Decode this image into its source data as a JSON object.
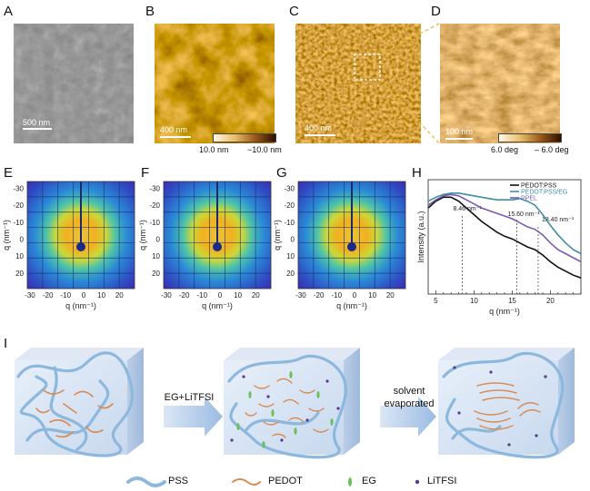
{
  "panels": {
    "A": {
      "label": "A",
      "scalebar": "500 nm"
    },
    "B": {
      "label": "B",
      "scalebar": "400 nm",
      "cb_max": "10.0 nm",
      "cb_min": "−10.0 nm"
    },
    "C": {
      "label": "C",
      "scalebar": "400 nm"
    },
    "D": {
      "label": "D",
      "scalebar": "100 nm",
      "cb_max": "6.0 deg",
      "cb_min": "– 6.0 deg"
    },
    "E": {
      "label": "E"
    },
    "F": {
      "label": "F"
    },
    "G": {
      "label": "G"
    },
    "H": {
      "label": "H"
    },
    "I": {
      "label": "I"
    }
  },
  "giwaxs": {
    "x_label": "q (nm⁻¹)",
    "y_label": "q (nm⁻¹)",
    "x_ticks": [
      "-30",
      "-20",
      "-10",
      "0",
      "10",
      "20"
    ],
    "y_ticks": [
      "-30",
      "-20",
      "-10",
      "0",
      "10",
      "20"
    ]
  },
  "chart_data": {
    "type": "line",
    "title": "",
    "xlabel": "q (nm⁻¹)",
    "ylabel": "Intensity (a.u.)",
    "xlim": [
      4,
      24
    ],
    "x_ticks": [
      "5",
      "10",
      "15",
      "20"
    ],
    "series": [
      {
        "name": "PEDOT:PSS",
        "color": "#111111",
        "x": [
          4,
          5,
          6,
          7,
          8,
          9,
          10,
          11,
          12,
          13,
          14,
          15,
          16,
          17,
          18,
          19,
          20,
          21,
          22,
          23,
          24
        ],
        "y": [
          0.74,
          0.79,
          0.82,
          0.82,
          0.79,
          0.74,
          0.69,
          0.64,
          0.6,
          0.56,
          0.53,
          0.51,
          0.48,
          0.45,
          0.43,
          0.39,
          0.34,
          0.3,
          0.27,
          0.24,
          0.22
        ]
      },
      {
        "name": "PEDOT:PSS/EG",
        "color": "#3f8ea0",
        "x": [
          4,
          5,
          6,
          7,
          8,
          9,
          10,
          11,
          12,
          13,
          14,
          15,
          16,
          17,
          18,
          19,
          20,
          21,
          22,
          23,
          24
        ],
        "y": [
          0.79,
          0.82,
          0.84,
          0.85,
          0.85,
          0.84,
          0.83,
          0.82,
          0.81,
          0.8,
          0.8,
          0.8,
          0.81,
          0.79,
          0.76,
          0.69,
          0.61,
          0.54,
          0.48,
          0.43,
          0.4
        ]
      },
      {
        "name": "PPEL",
        "color": "#7a5bb5",
        "x": [
          4,
          5,
          6,
          7,
          8,
          9,
          10,
          11,
          12,
          13,
          14,
          15,
          16,
          17,
          18,
          19,
          20,
          21,
          22,
          23,
          24
        ],
        "y": [
          0.76,
          0.8,
          0.83,
          0.84,
          0.83,
          0.8,
          0.77,
          0.74,
          0.72,
          0.7,
          0.68,
          0.66,
          0.63,
          0.6,
          0.58,
          0.54,
          0.48,
          0.43,
          0.4,
          0.37,
          0.34
        ]
      }
    ],
    "annotations": [
      {
        "text": "8.46 nm⁻¹",
        "x": 8.46
      },
      {
        "text": "15.60 nm⁻¹",
        "x": 15.6
      },
      {
        "text": "18.40 nm⁻¹",
        "x": 18.4
      }
    ]
  },
  "schematic": {
    "arrow1_label": "EG+LiTFSI",
    "arrow2_label_1": "solvent",
    "arrow2_label_2": "evaporated",
    "legend": {
      "pss": "PSS",
      "pedot": "PEDOT",
      "eg": "EG",
      "litfsi": "LiTFSI"
    }
  },
  "colors": {
    "pss": "#8db8de",
    "pedot": "#d98a52",
    "eg": "#6cbf5a",
    "litfsi": "#5a3a8a",
    "arrow": "#a9c6e6"
  }
}
